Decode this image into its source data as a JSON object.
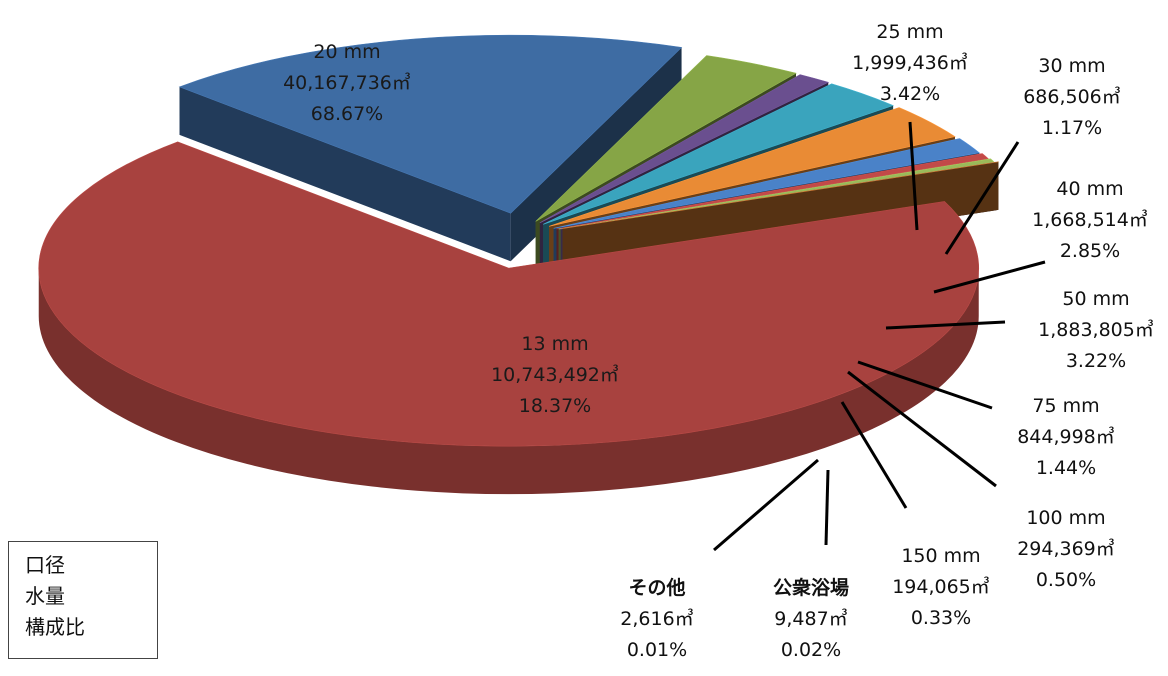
{
  "legend_key": {
    "lines": [
      "口径",
      "水量",
      "構成比"
    ]
  },
  "unit_symbol": "㎥",
  "chart_data": {
    "type": "pie",
    "style": "3d-exploded",
    "slices": [
      {
        "label": "20 mm",
        "volume": "40,167,736",
        "value": 40167736,
        "percent": "68.67%",
        "color": "#a8423f"
      },
      {
        "label": "13 mm",
        "volume": "10,743,492",
        "value": 10743492,
        "percent": "18.37%",
        "color": "#3e6ca3"
      },
      {
        "label": "25 mm",
        "volume": "1,999,436",
        "value": 1999436,
        "percent": "3.42%",
        "color": "#86a546"
      },
      {
        "label": "30 mm",
        "volume": "686,506",
        "value": 686506,
        "percent": "1.17%",
        "color": "#6a4f8f"
      },
      {
        "label": "40 mm",
        "volume": "1,668,514",
        "value": 1668514,
        "percent": "2.85%",
        "color": "#3aa4bd"
      },
      {
        "label": "50 mm",
        "volume": "1,883,805",
        "value": 1883805,
        "percent": "3.22%",
        "color": "#e98b35"
      },
      {
        "label": "75 mm",
        "volume": "844,998",
        "value": 844998,
        "percent": "1.44%",
        "color": "#4a82c8"
      },
      {
        "label": "100 mm",
        "volume": "294,369",
        "value": 294369,
        "percent": "0.50%",
        "color": "#c24a48"
      },
      {
        "label": "150 mm",
        "volume": "194,065",
        "value": 194065,
        "percent": "0.33%",
        "color": "#9aba59"
      },
      {
        "label": "公衆浴場",
        "volume": "9,487",
        "value": 9487,
        "percent": "0.02%",
        "color": "#7b5fa3"
      },
      {
        "label": "その他",
        "volume": "2,616",
        "value": 2616,
        "percent": "0.01%",
        "color": "#c0702b"
      }
    ]
  }
}
